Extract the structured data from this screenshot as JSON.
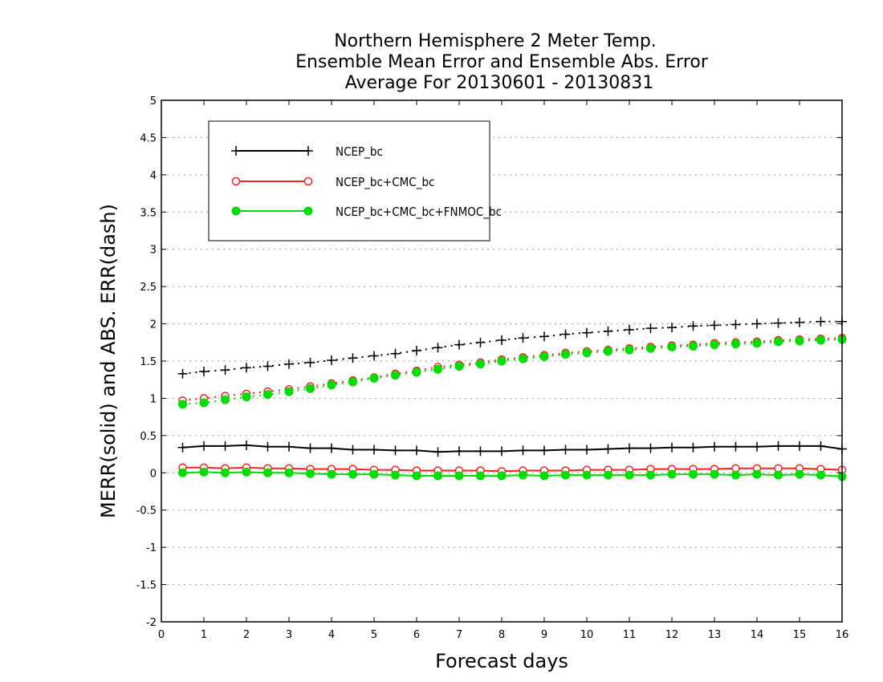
{
  "chart_data": {
    "type": "line",
    "title": [
      "Northern Hemisphere 2 Meter Temp.",
      "Ensemble Mean Error and Ensemble Abs. Error",
      "Average For 20130601 - 20130831"
    ],
    "xlabel": "Forecast days",
    "ylabel": "MERR(solid) and ABS. ERR(dash)",
    "xlim": [
      0,
      16
    ],
    "ylim": [
      -2,
      5
    ],
    "x_ticks": [
      "0",
      "1",
      "2",
      "3",
      "4",
      "5",
      "6",
      "7",
      "8",
      "9",
      "10",
      "11",
      "12",
      "13",
      "14",
      "15",
      "16"
    ],
    "y_ticks": [
      "5",
      "4.5",
      "4",
      "3.5",
      "3",
      "2.5",
      "2",
      "1.5",
      "1",
      "0.5",
      "0",
      "-0.5",
      "-1",
      "-1.5",
      "-2"
    ],
    "grid": "horizontal-dotted",
    "legend_position": "top-left",
    "x": [
      0.5,
      1,
      1.5,
      2,
      2.5,
      3,
      3.5,
      4,
      4.5,
      5,
      5.5,
      6,
      6.5,
      7,
      7.5,
      8,
      8.5,
      9,
      9.5,
      10,
      10.5,
      11,
      11.5,
      12,
      12.5,
      13,
      13.5,
      14,
      14.5,
      15,
      15.5,
      16
    ],
    "series": [
      {
        "name": "NCEP_bc",
        "color": "#000000",
        "marker": "plus",
        "merr": [
          0.34,
          0.36,
          0.36,
          0.37,
          0.35,
          0.35,
          0.33,
          0.33,
          0.31,
          0.31,
          0.3,
          0.3,
          0.28,
          0.29,
          0.29,
          0.29,
          0.3,
          0.3,
          0.31,
          0.31,
          0.32,
          0.33,
          0.33,
          0.34,
          0.34,
          0.35,
          0.35,
          0.35,
          0.36,
          0.36,
          0.36,
          0.32
        ],
        "abs_err": [
          1.33,
          1.36,
          1.38,
          1.41,
          1.43,
          1.46,
          1.48,
          1.51,
          1.54,
          1.57,
          1.6,
          1.64,
          1.68,
          1.72,
          1.75,
          1.78,
          1.81,
          1.83,
          1.86,
          1.88,
          1.9,
          1.92,
          1.94,
          1.95,
          1.97,
          1.98,
          1.99,
          2.0,
          2.01,
          2.02,
          2.03,
          2.03
        ]
      },
      {
        "name": "NCEP_bc+CMC_bc",
        "color": "#ff2020",
        "marker": "open-circle",
        "merr": [
          0.07,
          0.07,
          0.06,
          0.07,
          0.06,
          0.06,
          0.05,
          0.05,
          0.05,
          0.04,
          0.04,
          0.03,
          0.03,
          0.03,
          0.03,
          0.02,
          0.03,
          0.03,
          0.03,
          0.04,
          0.04,
          0.04,
          0.05,
          0.05,
          0.05,
          0.05,
          0.06,
          0.06,
          0.06,
          0.06,
          0.05,
          0.04
        ],
        "abs_err": [
          0.97,
          1.0,
          1.03,
          1.06,
          1.09,
          1.12,
          1.16,
          1.2,
          1.24,
          1.28,
          1.33,
          1.37,
          1.42,
          1.45,
          1.48,
          1.52,
          1.55,
          1.58,
          1.61,
          1.63,
          1.65,
          1.67,
          1.69,
          1.71,
          1.72,
          1.74,
          1.75,
          1.76,
          1.78,
          1.79,
          1.8,
          1.81
        ]
      },
      {
        "name": "NCEP_bc+CMC_bc+FNMOC_bc",
        "color": "#00dd00",
        "marker": "filled-circle",
        "merr": [
          0.0,
          0.01,
          0.0,
          0.01,
          0.0,
          0.0,
          -0.01,
          -0.02,
          -0.02,
          -0.02,
          -0.03,
          -0.04,
          -0.04,
          -0.04,
          -0.04,
          -0.04,
          -0.03,
          -0.04,
          -0.03,
          -0.03,
          -0.03,
          -0.03,
          -0.03,
          -0.02,
          -0.02,
          -0.02,
          -0.03,
          -0.02,
          -0.03,
          -0.02,
          -0.03,
          -0.05
        ],
        "abs_err": [
          0.92,
          0.94,
          0.98,
          1.02,
          1.05,
          1.09,
          1.13,
          1.18,
          1.22,
          1.27,
          1.31,
          1.35,
          1.39,
          1.43,
          1.46,
          1.5,
          1.53,
          1.56,
          1.59,
          1.61,
          1.63,
          1.65,
          1.67,
          1.69,
          1.7,
          1.72,
          1.73,
          1.74,
          1.76,
          1.77,
          1.78,
          1.79
        ]
      }
    ]
  }
}
